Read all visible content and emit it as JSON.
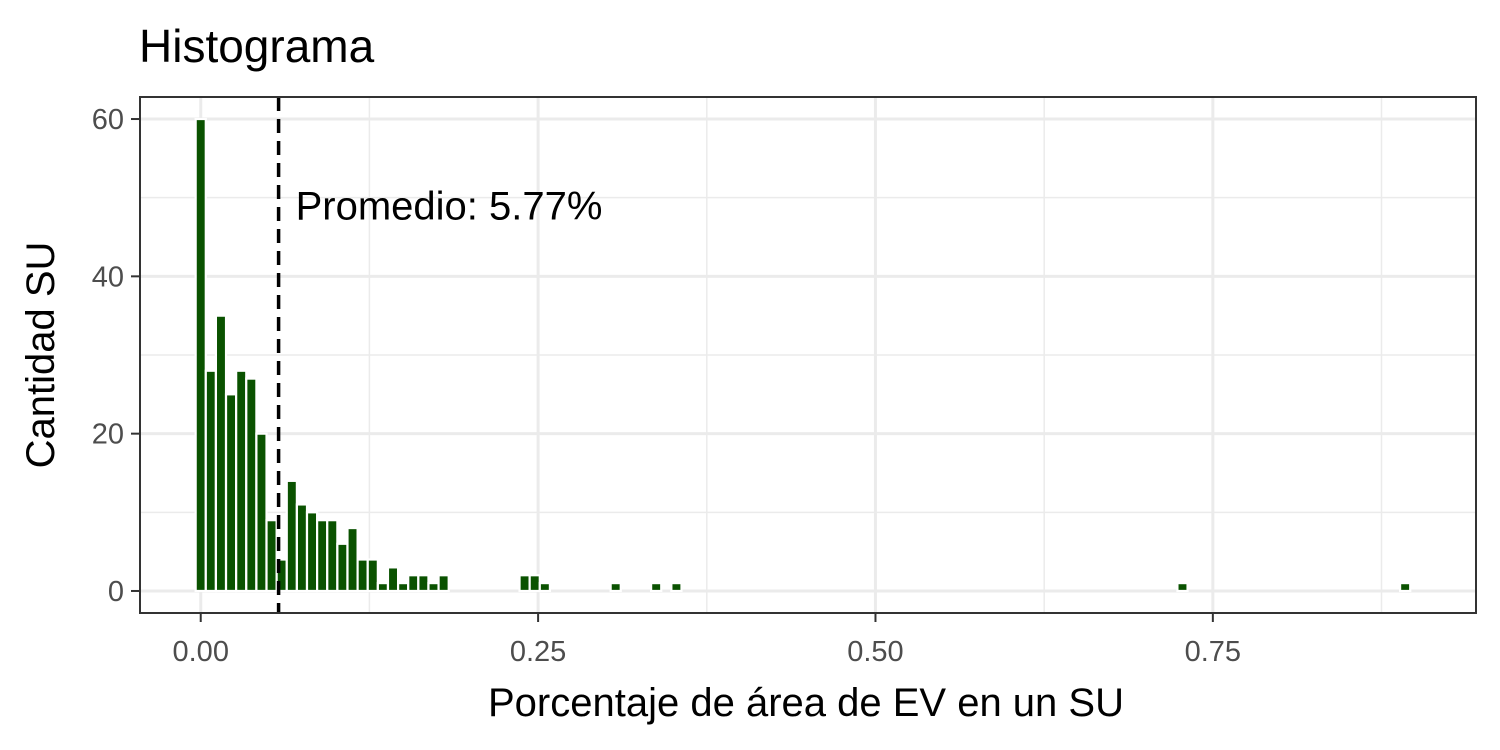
{
  "chart_data": {
    "type": "bar",
    "title": "Histograma",
    "xlabel": "Porcentaje de área de EV en un SU",
    "ylabel": "Cantidad SU",
    "xlim": [
      -0.045,
      0.945
    ],
    "ylim": [
      -2.8,
      62.8
    ],
    "x_ticks": [
      0.0,
      0.25,
      0.5,
      0.75
    ],
    "x_tick_labels": [
      "0.00",
      "0.25",
      "0.50",
      "0.75"
    ],
    "y_ticks": [
      0,
      20,
      40,
      60
    ],
    "y_tick_labels": [
      "0",
      "20",
      "40",
      "60"
    ],
    "grid": true,
    "bin_width": 0.0075,
    "bar_color": "#0a5200",
    "bins": [
      {
        "x": 0.0,
        "count": 60
      },
      {
        "x": 0.0075,
        "count": 28
      },
      {
        "x": 0.015,
        "count": 35
      },
      {
        "x": 0.0225,
        "count": 25
      },
      {
        "x": 0.03,
        "count": 28
      },
      {
        "x": 0.0375,
        "count": 27
      },
      {
        "x": 0.045,
        "count": 20
      },
      {
        "x": 0.0525,
        "count": 9
      },
      {
        "x": 0.06,
        "count": 4
      },
      {
        "x": 0.0675,
        "count": 14
      },
      {
        "x": 0.075,
        "count": 11
      },
      {
        "x": 0.0825,
        "count": 10
      },
      {
        "x": 0.09,
        "count": 9
      },
      {
        "x": 0.0975,
        "count": 9
      },
      {
        "x": 0.105,
        "count": 6
      },
      {
        "x": 0.1125,
        "count": 8
      },
      {
        "x": 0.12,
        "count": 4
      },
      {
        "x": 0.1275,
        "count": 4
      },
      {
        "x": 0.135,
        "count": 1
      },
      {
        "x": 0.1425,
        "count": 3
      },
      {
        "x": 0.15,
        "count": 1
      },
      {
        "x": 0.1575,
        "count": 2
      },
      {
        "x": 0.165,
        "count": 2
      },
      {
        "x": 0.1725,
        "count": 1
      },
      {
        "x": 0.18,
        "count": 2
      },
      {
        "x": 0.24,
        "count": 2
      },
      {
        "x": 0.2475,
        "count": 2
      },
      {
        "x": 0.255,
        "count": 1
      },
      {
        "x": 0.3075,
        "count": 1
      },
      {
        "x": 0.3375,
        "count": 1
      },
      {
        "x": 0.3525,
        "count": 1
      },
      {
        "x": 0.7275,
        "count": 1
      },
      {
        "x": 0.8925,
        "count": 1
      }
    ],
    "mean_line": {
      "x": 0.0577,
      "style": "dashed",
      "color": "#000000"
    },
    "annotation": {
      "text": "Promedio: 5.77%",
      "x": 0.0577,
      "y": 49
    }
  }
}
